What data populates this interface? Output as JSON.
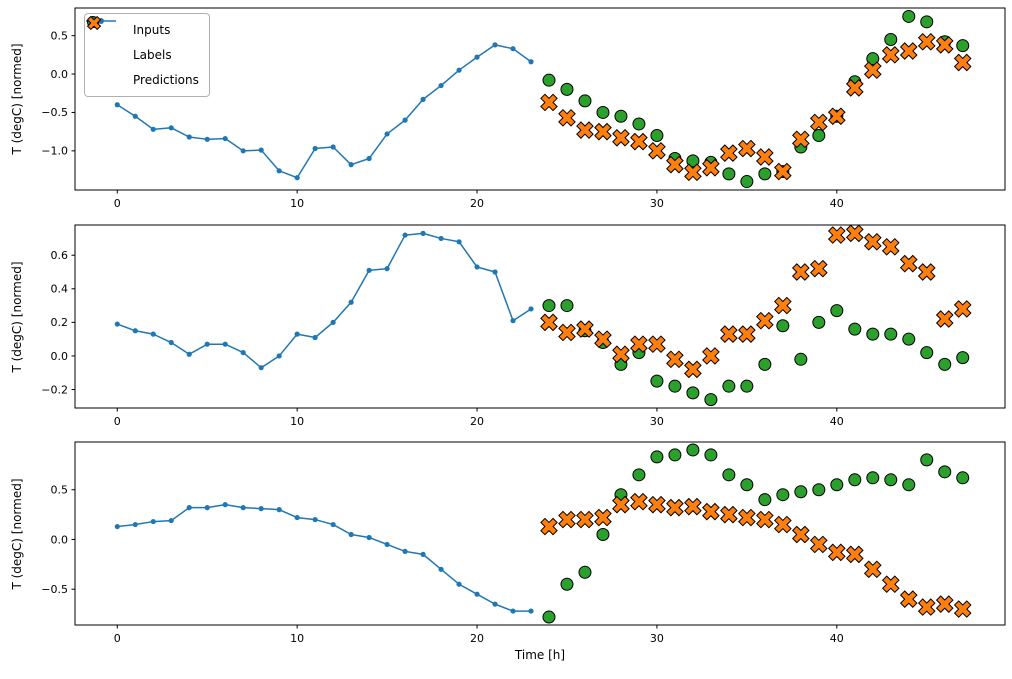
{
  "figure": {
    "background": "#ffffff",
    "xlabel": "Time [h]",
    "ylabel": "T (degC) [normed]",
    "legend": [
      {
        "label": "Inputs",
        "marker": "line-dot",
        "color": "#1f77b4"
      },
      {
        "label": "Labels",
        "marker": "circle",
        "color": "#2ca02c"
      },
      {
        "label": "Predictions",
        "marker": "x",
        "color": "#ff7f0e"
      }
    ]
  },
  "chart_data": [
    {
      "type": "line",
      "title": "",
      "xlabel": "",
      "ylabel": "T (degC) [normed]",
      "xlim": [
        -2.35,
        49.35
      ],
      "ylim": [
        -1.51,
        0.86
      ],
      "xticks": [
        0,
        10,
        20,
        30,
        40
      ],
      "yticks": [
        -1.0,
        -0.5,
        0.0,
        0.5
      ],
      "grid": false,
      "legend_position": "upper left",
      "series": [
        {
          "name": "Inputs",
          "style": "line-dot",
          "color": "#1f77b4",
          "x": [
            0,
            1,
            2,
            3,
            4,
            5,
            6,
            7,
            8,
            9,
            10,
            11,
            12,
            13,
            14,
            15,
            16,
            17,
            18,
            19,
            20,
            21,
            22,
            23
          ],
          "y": [
            -0.4,
            -0.55,
            -0.72,
            -0.7,
            -0.82,
            -0.85,
            -0.84,
            -1.0,
            -0.99,
            -1.26,
            -1.35,
            -0.97,
            -0.95,
            -1.18,
            -1.1,
            -0.78,
            -0.6,
            -0.33,
            -0.15,
            0.05,
            0.22,
            0.38,
            0.33,
            0.16
          ]
        },
        {
          "name": "Labels",
          "style": "circle",
          "color": "#2ca02c",
          "edge": "#000000",
          "x": [
            24,
            25,
            26,
            27,
            28,
            29,
            30,
            31,
            32,
            33,
            34,
            35,
            36,
            37,
            38,
            39,
            40,
            41,
            42,
            43,
            44,
            45,
            46,
            47
          ],
          "y": [
            -0.08,
            -0.2,
            -0.35,
            -0.5,
            -0.55,
            -0.65,
            -0.8,
            -1.1,
            -1.13,
            -1.15,
            -1.3,
            -1.4,
            -1.3,
            -1.27,
            -0.95,
            -0.8,
            -0.55,
            -0.1,
            0.2,
            0.45,
            0.75,
            0.68,
            0.42,
            0.37
          ]
        },
        {
          "name": "Predictions",
          "style": "x",
          "color": "#ff7f0e",
          "edge": "#000000",
          "x": [
            24,
            25,
            26,
            27,
            28,
            29,
            30,
            31,
            32,
            33,
            34,
            35,
            36,
            37,
            38,
            39,
            40,
            41,
            42,
            43,
            44,
            45,
            46,
            47
          ],
          "y": [
            -0.37,
            -0.57,
            -0.73,
            -0.75,
            -0.83,
            -0.88,
            -1.0,
            -1.18,
            -1.28,
            -1.22,
            -1.03,
            -0.97,
            -1.08,
            -1.27,
            -0.85,
            -0.63,
            -0.55,
            -0.18,
            0.05,
            0.25,
            0.3,
            0.42,
            0.38,
            0.15
          ]
        }
      ]
    },
    {
      "type": "line",
      "title": "",
      "xlabel": "",
      "ylabel": "T (degC) [normed]",
      "xlim": [
        -2.35,
        49.35
      ],
      "ylim": [
        -0.31,
        0.78
      ],
      "xticks": [
        0,
        10,
        20,
        30,
        40
      ],
      "yticks": [
        -0.2,
        0.0,
        0.2,
        0.4,
        0.6
      ],
      "grid": false,
      "series": [
        {
          "name": "Inputs",
          "style": "line-dot",
          "color": "#1f77b4",
          "x": [
            0,
            1,
            2,
            3,
            4,
            5,
            6,
            7,
            8,
            9,
            10,
            11,
            12,
            13,
            14,
            15,
            16,
            17,
            18,
            19,
            20,
            21,
            22,
            23
          ],
          "y": [
            0.19,
            0.15,
            0.13,
            0.08,
            0.01,
            0.07,
            0.07,
            0.02,
            -0.07,
            0.0,
            0.13,
            0.11,
            0.2,
            0.32,
            0.51,
            0.52,
            0.72,
            0.73,
            0.7,
            0.68,
            0.53,
            0.5,
            0.21,
            0.28
          ]
        },
        {
          "name": "Labels",
          "style": "circle",
          "color": "#2ca02c",
          "edge": "#000000",
          "x": [
            24,
            25,
            26,
            27,
            28,
            29,
            30,
            31,
            32,
            33,
            34,
            35,
            36,
            37,
            38,
            39,
            40,
            41,
            42,
            43,
            44,
            45,
            46,
            47
          ],
          "y": [
            0.3,
            0.3,
            0.15,
            0.08,
            -0.05,
            0.02,
            -0.15,
            -0.18,
            -0.22,
            -0.26,
            -0.18,
            -0.18,
            -0.05,
            0.18,
            -0.02,
            0.2,
            0.27,
            0.16,
            0.13,
            0.13,
            0.1,
            0.02,
            -0.05,
            -0.01
          ]
        },
        {
          "name": "Predictions",
          "style": "x",
          "color": "#ff7f0e",
          "edge": "#000000",
          "x": [
            24,
            25,
            26,
            27,
            28,
            29,
            30,
            31,
            32,
            33,
            34,
            35,
            36,
            37,
            38,
            39,
            40,
            41,
            42,
            43,
            44,
            45,
            46,
            47
          ],
          "y": [
            0.2,
            0.14,
            0.16,
            0.1,
            0.01,
            0.07,
            0.07,
            -0.02,
            -0.08,
            0.0,
            0.13,
            0.13,
            0.21,
            0.3,
            0.5,
            0.52,
            0.72,
            0.73,
            0.68,
            0.65,
            0.55,
            0.5,
            0.22,
            0.28
          ]
        }
      ]
    },
    {
      "type": "line",
      "title": "",
      "xlabel": "Time [h]",
      "ylabel": "T (degC) [normed]",
      "xlim": [
        -2.35,
        49.35
      ],
      "ylim": [
        -0.86,
        0.98
      ],
      "xticks": [
        0,
        10,
        20,
        30,
        40
      ],
      "yticks": [
        -0.5,
        0.0,
        0.5
      ],
      "grid": false,
      "series": [
        {
          "name": "Inputs",
          "style": "line-dot",
          "color": "#1f77b4",
          "x": [
            0,
            1,
            2,
            3,
            4,
            5,
            6,
            7,
            8,
            9,
            10,
            11,
            12,
            13,
            14,
            15,
            16,
            17,
            18,
            19,
            20,
            21,
            22,
            23
          ],
          "y": [
            0.13,
            0.15,
            0.18,
            0.19,
            0.32,
            0.32,
            0.35,
            0.32,
            0.31,
            0.3,
            0.22,
            0.2,
            0.15,
            0.05,
            0.02,
            -0.05,
            -0.12,
            -0.15,
            -0.3,
            -0.45,
            -0.55,
            -0.65,
            -0.72,
            -0.72
          ]
        },
        {
          "name": "Labels",
          "style": "circle",
          "color": "#2ca02c",
          "edge": "#000000",
          "x": [
            24,
            25,
            26,
            27,
            28,
            29,
            30,
            31,
            32,
            33,
            34,
            35,
            36,
            37,
            38,
            39,
            40,
            41,
            42,
            43,
            44,
            45,
            46,
            47
          ],
          "y": [
            -0.78,
            -0.45,
            -0.33,
            0.05,
            0.45,
            0.65,
            0.83,
            0.85,
            0.9,
            0.85,
            0.65,
            0.55,
            0.4,
            0.45,
            0.48,
            0.5,
            0.55,
            0.6,
            0.62,
            0.6,
            0.55,
            0.8,
            0.68,
            0.62
          ]
        },
        {
          "name": "Predictions",
          "style": "x",
          "color": "#ff7f0e",
          "edge": "#000000",
          "x": [
            24,
            25,
            26,
            27,
            28,
            29,
            30,
            31,
            32,
            33,
            34,
            35,
            36,
            37,
            38,
            39,
            40,
            41,
            42,
            43,
            44,
            45,
            46,
            47
          ],
          "y": [
            0.13,
            0.2,
            0.2,
            0.22,
            0.35,
            0.38,
            0.35,
            0.32,
            0.33,
            0.28,
            0.25,
            0.22,
            0.2,
            0.15,
            0.05,
            -0.05,
            -0.13,
            -0.15,
            -0.3,
            -0.45,
            -0.6,
            -0.68,
            -0.65,
            -0.7
          ]
        }
      ]
    }
  ]
}
